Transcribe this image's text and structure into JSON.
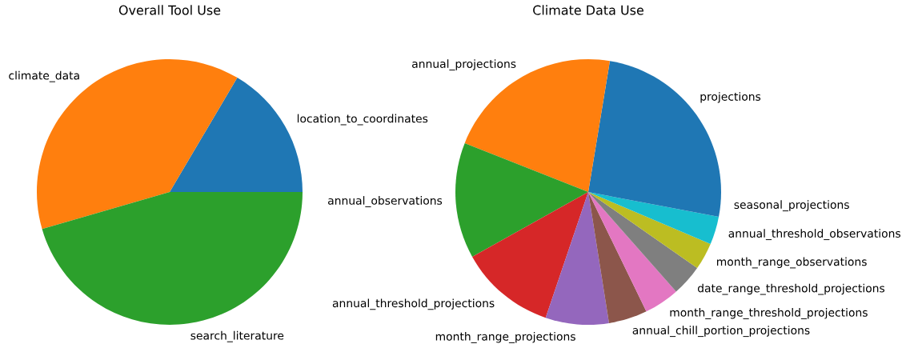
{
  "chart_data": [
    {
      "type": "pie",
      "title": "Overall Tool Use",
      "categories": [
        "location_to_coordinates",
        "climate_data",
        "search_literature"
      ],
      "values": [
        16.5,
        38,
        45.5
      ],
      "colors": [
        "#1f77b4",
        "#ff7f0e",
        "#2ca02c"
      ]
    },
    {
      "type": "pie",
      "title": "Climate Data Use",
      "categories": [
        "projections",
        "annual_projections",
        "annual_observations",
        "annual_threshold_projections",
        "month_range_projections",
        "annual_chill_portion_projections",
        "month_range_threshold_projections",
        "date_range_threshold_projections",
        "month_range_observations",
        "annual_threshold_observations",
        "seasonal_projections"
      ],
      "values": [
        22.4,
        21.6,
        14.1,
        11.7,
        7.7,
        4.7,
        4.3,
        3.8,
        3.3,
        3.4,
        3.0
      ],
      "colors": [
        "#1f77b4",
        "#ff7f0e",
        "#2ca02c",
        "#d62728",
        "#9467bd",
        "#8c564b",
        "#e377c2",
        "#7f7f7f",
        "#bcbd22",
        "#17becf",
        "#1f77b4"
      ]
    }
  ]
}
